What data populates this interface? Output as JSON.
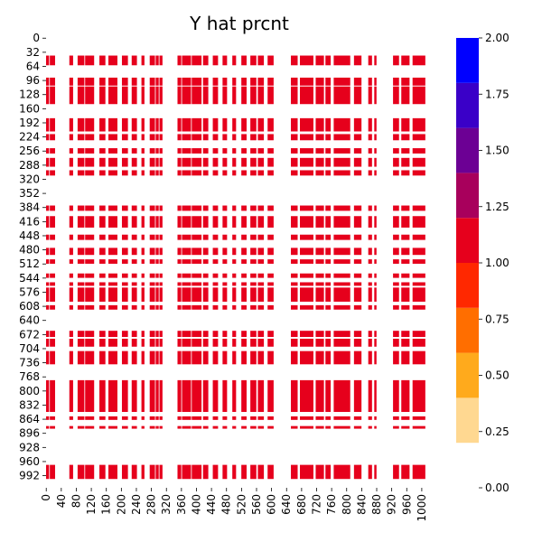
{
  "chart_data": {
    "type": "heatmap",
    "title": "Y hat prcnt",
    "xlabel": "",
    "ylabel": "",
    "grid": false,
    "n_rows": 1020,
    "n_cols": 1020,
    "x_ticks": [
      0,
      40,
      80,
      120,
      160,
      200,
      240,
      280,
      320,
      360,
      400,
      440,
      480,
      520,
      560,
      600,
      640,
      680,
      720,
      760,
      800,
      840,
      880,
      920,
      960,
      1000
    ],
    "y_ticks": [
      0,
      32,
      64,
      96,
      128,
      160,
      192,
      224,
      256,
      288,
      320,
      352,
      384,
      416,
      448,
      480,
      512,
      544,
      576,
      608,
      640,
      672,
      704,
      736,
      768,
      800,
      832,
      864,
      896,
      928,
      960,
      992
    ],
    "colorbar": {
      "range": [
        0,
        2.0
      ],
      "ticks": [
        0.0,
        0.25,
        0.5,
        0.75,
        1.0,
        1.25,
        1.5,
        1.75,
        2.0
      ],
      "tick_labels": [
        "0.00",
        "0.25",
        "0.50",
        "0.75",
        "1.00",
        "1.25",
        "1.50",
        "1.75",
        "2.00"
      ],
      "bands": [
        {
          "from": 0.2,
          "to": 0.4,
          "color": "#ffd891"
        },
        {
          "from": 0.4,
          "to": 0.6,
          "color": "#ffaa1c"
        },
        {
          "from": 0.6,
          "to": 0.8,
          "color": "#ff6e00"
        },
        {
          "from": 0.8,
          "to": 1.0,
          "color": "#ff2800"
        },
        {
          "from": 1.0,
          "to": 1.2,
          "color": "#e6001c"
        },
        {
          "from": 1.2,
          "to": 1.4,
          "color": "#a8005c"
        },
        {
          "from": 1.4,
          "to": 1.6,
          "color": "#6c0094"
        },
        {
          "from": 1.6,
          "to": 1.8,
          "color": "#3a00c8"
        },
        {
          "from": 1.8,
          "to": 2.0,
          "color": "#0000ff"
        }
      ]
    },
    "cell_color": "#e6001c",
    "cell_value": 1.0,
    "row_bands": [
      [
        40,
        62
      ],
      [
        90,
        108
      ],
      [
        110,
        150
      ],
      [
        182,
        212
      ],
      [
        218,
        232
      ],
      [
        250,
        262
      ],
      [
        272,
        292
      ],
      [
        300,
        312
      ],
      [
        380,
        392
      ],
      [
        404,
        430
      ],
      [
        446,
        458
      ],
      [
        476,
        492
      ],
      [
        502,
        512
      ],
      [
        534,
        544
      ],
      [
        554,
        562
      ],
      [
        566,
        598
      ],
      [
        606,
        616
      ],
      [
        664,
        678
      ],
      [
        682,
        700
      ],
      [
        710,
        740
      ],
      [
        776,
        848
      ],
      [
        858,
        866
      ],
      [
        880,
        886
      ],
      [
        968,
        1000
      ]
    ],
    "col_bands": [
      [
        0,
        8
      ],
      [
        10,
        24
      ],
      [
        62,
        72
      ],
      [
        84,
        102
      ],
      [
        104,
        128
      ],
      [
        142,
        158
      ],
      [
        166,
        190
      ],
      [
        202,
        218
      ],
      [
        228,
        242
      ],
      [
        254,
        262
      ],
      [
        276,
        290
      ],
      [
        292,
        300
      ],
      [
        302,
        310
      ],
      [
        350,
        360
      ],
      [
        362,
        386
      ],
      [
        388,
        414
      ],
      [
        418,
        432
      ],
      [
        444,
        458
      ],
      [
        470,
        482
      ],
      [
        496,
        506
      ],
      [
        520,
        534
      ],
      [
        544,
        560
      ],
      [
        564,
        580
      ],
      [
        590,
        606
      ],
      [
        652,
        670
      ],
      [
        676,
        712
      ],
      [
        718,
        740
      ],
      [
        744,
        758
      ],
      [
        766,
        810
      ],
      [
        820,
        840
      ],
      [
        858,
        868
      ],
      [
        874,
        880
      ],
      [
        924,
        940
      ],
      [
        946,
        968
      ],
      [
        976,
        1010
      ]
    ]
  }
}
